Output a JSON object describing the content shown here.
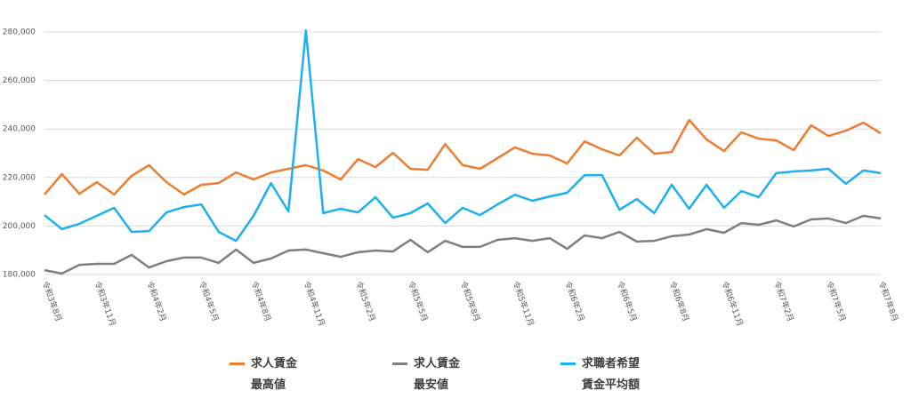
{
  "chart_data": {
    "type": "line",
    "categories": [
      "令和3年8月",
      null,
      null,
      "令和3年11月",
      null,
      null,
      "令和4年2月",
      null,
      null,
      "令和4年5月",
      null,
      null,
      "令和4年8月",
      null,
      null,
      "令和4年11月",
      null,
      null,
      "令和5年2月",
      null,
      null,
      "令和5年5月",
      null,
      null,
      "令和5年8月",
      null,
      null,
      "令和5年11月",
      null,
      null,
      "令和6年2月",
      null,
      null,
      "令和6年5月",
      null,
      null,
      "令和6年8月",
      null,
      null,
      "令和6年11月",
      null,
      null,
      "令和7年2月",
      null,
      null,
      "令和7年5月",
      null,
      null,
      "令和7年8月"
    ],
    "series": [
      {
        "name": "求人賃金\n最高値",
        "color": "#ed7d31",
        "values": [
          213000,
          221400,
          213300,
          218100,
          213000,
          220700,
          225100,
          218100,
          213000,
          217000,
          217700,
          222100,
          219200,
          222100,
          223600,
          225100,
          222900,
          219200,
          227600,
          224300,
          230200,
          223600,
          223200,
          233800,
          225100,
          223600,
          228000,
          232400,
          229800,
          229100,
          225800,
          234900,
          231600,
          229100,
          236400,
          229800,
          230500,
          243700,
          235700,
          230900,
          238600,
          236000,
          235300,
          231300,
          241500,
          237100,
          239300,
          242600,
          238200
        ]
      },
      {
        "name": "求人賃金\n最安値",
        "color": "#7f7f7f",
        "values": [
          181800,
          180400,
          184000,
          184400,
          184400,
          188100,
          182900,
          185500,
          187000,
          187000,
          184800,
          190300,
          184800,
          186600,
          189900,
          190300,
          188800,
          187300,
          189200,
          189900,
          189500,
          194300,
          189200,
          193900,
          191400,
          191400,
          194300,
          195000,
          193900,
          195000,
          190600,
          196100,
          195000,
          197600,
          193600,
          193900,
          195800,
          196500,
          198700,
          197200,
          201200,
          200500,
          202300,
          199800,
          202700,
          203100,
          201200,
          204200,
          203100
        ]
      },
      {
        "name": "求職者希望\n賃金平均額",
        "color": "#1cb0f0",
        "values": [
          204500,
          198700,
          200900,
          204200,
          207500,
          197600,
          197900,
          205600,
          207800,
          208900,
          197600,
          193900,
          204200,
          217700,
          206000,
          280700,
          205300,
          207100,
          205600,
          211900,
          203400,
          205300,
          209300,
          201200,
          207500,
          204500,
          208900,
          212900,
          210400,
          212200,
          213700,
          221000,
          221000,
          206700,
          211100,
          205300,
          217000,
          207100,
          217000,
          207500,
          214400,
          211900,
          221800,
          222500,
          222900,
          223600,
          217400,
          222900,
          221800
        ]
      }
    ],
    "ylim": [
      180000,
      280000
    ],
    "yticks": [
      {
        "value": 180000,
        "label": "180,000"
      },
      {
        "value": 200000,
        "label": "200,000"
      },
      {
        "value": 220000,
        "label": "220,000"
      },
      {
        "value": 240000,
        "label": "240,000"
      },
      {
        "value": 260000,
        "label": "260,000"
      },
      {
        "value": 280000,
        "label": "280,000"
      }
    ],
    "grid": true
  }
}
